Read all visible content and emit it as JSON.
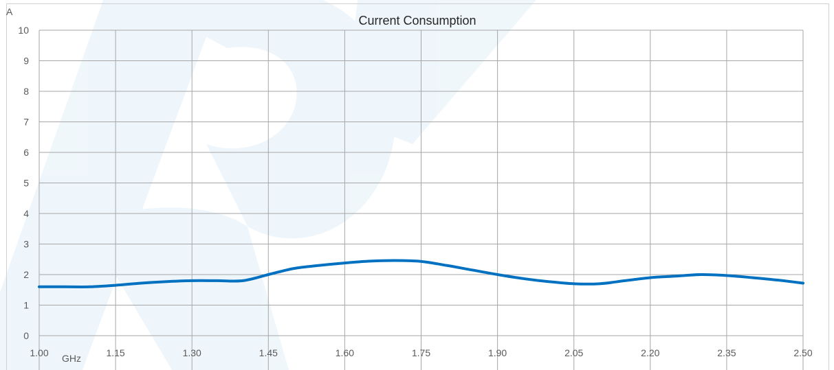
{
  "chart_data": {
    "type": "line",
    "title": "Current Consumption",
    "xlabel": "GHz",
    "ylabel": "A",
    "xlim": [
      1.0,
      2.5
    ],
    "ylim": [
      0,
      10
    ],
    "x_ticks": [
      "1.00",
      "1.15",
      "1.30",
      "1.45",
      "1.60",
      "1.75",
      "1.90",
      "2.05",
      "2.20",
      "2.35",
      "2.50"
    ],
    "y_ticks": [
      "0",
      "1",
      "2",
      "3",
      "4",
      "5",
      "6",
      "7",
      "8",
      "9",
      "10"
    ],
    "grid": true,
    "legend": "none",
    "series": [
      {
        "color": "#0070C0",
        "x": [
          1.0,
          1.05,
          1.1,
          1.15,
          1.2,
          1.25,
          1.3,
          1.35,
          1.4,
          1.45,
          1.5,
          1.55,
          1.6,
          1.65,
          1.7,
          1.75,
          1.8,
          1.85,
          1.9,
          1.95,
          2.0,
          2.05,
          2.1,
          2.15,
          2.2,
          2.25,
          2.3,
          2.35,
          2.4,
          2.45,
          2.5
        ],
        "y": [
          1.6,
          1.6,
          1.6,
          1.65,
          1.72,
          1.77,
          1.8,
          1.8,
          1.8,
          2.0,
          2.2,
          2.3,
          2.38,
          2.44,
          2.46,
          2.43,
          2.3,
          2.15,
          2.0,
          1.87,
          1.77,
          1.7,
          1.7,
          1.8,
          1.9,
          1.95,
          2.0,
          1.97,
          1.9,
          1.82,
          1.72
        ]
      }
    ]
  }
}
